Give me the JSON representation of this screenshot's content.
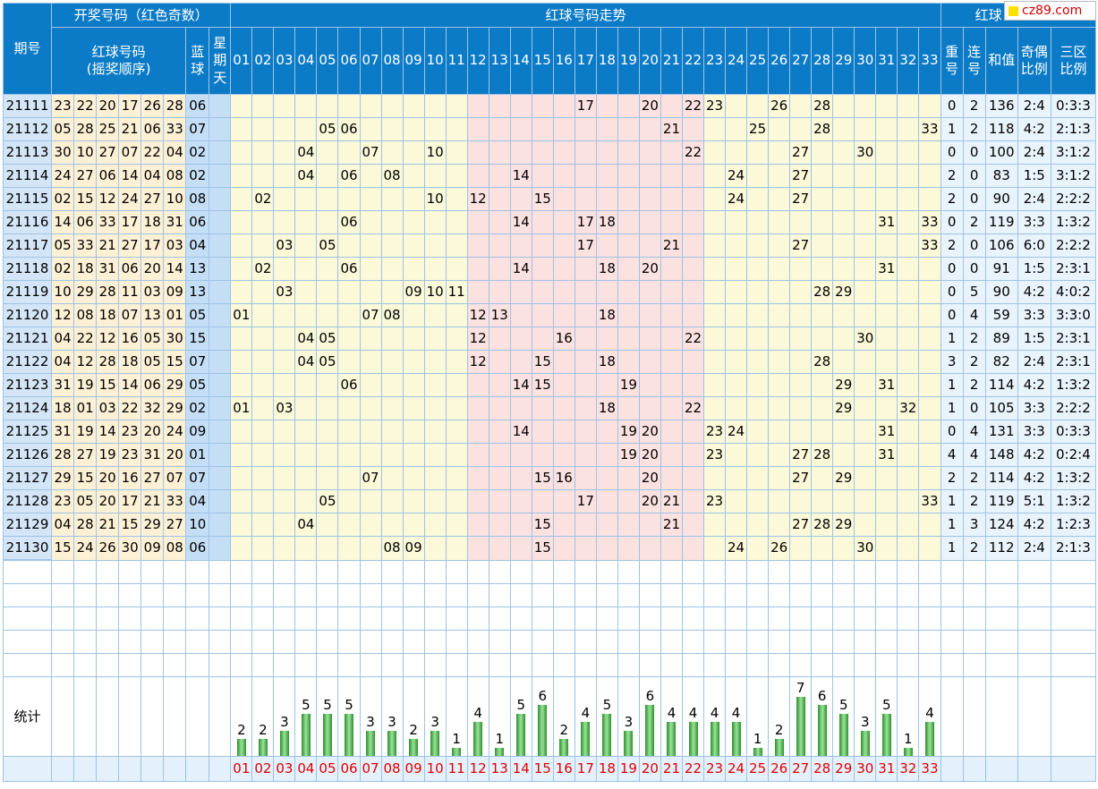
{
  "header": {
    "period": "期号",
    "draw_group": "开奖号码（红色奇数）",
    "trend_group": "红球号码走势",
    "stats_group": "红球",
    "red_label": "红球号码\n(摇奖顺序)",
    "blue_label": "蓝\n球",
    "weekday_label": "星\n期\n天",
    "repeat_label": "重\n号",
    "consec_label": "连\n号",
    "sum_label": "和值",
    "oddeven_label": "奇偶\n比例",
    "zone_label": "三区\n比例"
  },
  "numbers": [
    "01",
    "02",
    "03",
    "04",
    "05",
    "06",
    "07",
    "08",
    "09",
    "10",
    "11",
    "12",
    "13",
    "14",
    "15",
    "16",
    "17",
    "18",
    "19",
    "20",
    "21",
    "22",
    "23",
    "24",
    "25",
    "26",
    "27",
    "28",
    "29",
    "30",
    "31",
    "32",
    "33"
  ],
  "rows": [
    {
      "p": "21111",
      "red": [
        "23",
        "22",
        "20",
        "17",
        "26",
        "28"
      ],
      "blue": "06",
      "rep": "0",
      "con": "2",
      "sum": "136",
      "oe": "2:4",
      "zone": "0:3:3"
    },
    {
      "p": "21112",
      "red": [
        "05",
        "28",
        "25",
        "21",
        "06",
        "33"
      ],
      "blue": "07",
      "rep": "1",
      "con": "2",
      "sum": "118",
      "oe": "4:2",
      "zone": "2:1:3"
    },
    {
      "p": "21113",
      "red": [
        "30",
        "10",
        "27",
        "07",
        "22",
        "04"
      ],
      "blue": "02",
      "rep": "0",
      "con": "0",
      "sum": "100",
      "oe": "2:4",
      "zone": "3:1:2"
    },
    {
      "p": "21114",
      "red": [
        "24",
        "27",
        "06",
        "14",
        "04",
        "08"
      ],
      "blue": "02",
      "rep": "2",
      "con": "0",
      "sum": "83",
      "oe": "1:5",
      "zone": "3:1:2"
    },
    {
      "p": "21115",
      "red": [
        "02",
        "15",
        "12",
        "24",
        "27",
        "10"
      ],
      "blue": "08",
      "rep": "2",
      "con": "0",
      "sum": "90",
      "oe": "2:4",
      "zone": "2:2:2"
    },
    {
      "p": "21116",
      "red": [
        "14",
        "06",
        "33",
        "17",
        "18",
        "31"
      ],
      "blue": "06",
      "rep": "0",
      "con": "2",
      "sum": "119",
      "oe": "3:3",
      "zone": "1:3:2"
    },
    {
      "p": "21117",
      "red": [
        "05",
        "33",
        "21",
        "27",
        "17",
        "03"
      ],
      "blue": "04",
      "rep": "2",
      "con": "0",
      "sum": "106",
      "oe": "6:0",
      "zone": "2:2:2"
    },
    {
      "p": "21118",
      "red": [
        "02",
        "18",
        "31",
        "06",
        "20",
        "14"
      ],
      "blue": "13",
      "rep": "0",
      "con": "0",
      "sum": "91",
      "oe": "1:5",
      "zone": "2:3:1"
    },
    {
      "p": "21119",
      "red": [
        "10",
        "29",
        "28",
        "11",
        "03",
        "09"
      ],
      "blue": "13",
      "rep": "0",
      "con": "5",
      "sum": "90",
      "oe": "4:2",
      "zone": "4:0:2"
    },
    {
      "p": "21120",
      "red": [
        "12",
        "08",
        "18",
        "07",
        "13",
        "01"
      ],
      "blue": "05",
      "rep": "0",
      "con": "4",
      "sum": "59",
      "oe": "3:3",
      "zone": "3:3:0"
    },
    {
      "p": "21121",
      "red": [
        "04",
        "22",
        "12",
        "16",
        "05",
        "30"
      ],
      "blue": "15",
      "rep": "1",
      "con": "2",
      "sum": "89",
      "oe": "1:5",
      "zone": "2:3:1"
    },
    {
      "p": "21122",
      "red": [
        "04",
        "12",
        "28",
        "18",
        "05",
        "15"
      ],
      "blue": "07",
      "rep": "3",
      "con": "2",
      "sum": "82",
      "oe": "2:4",
      "zone": "2:3:1"
    },
    {
      "p": "21123",
      "red": [
        "31",
        "19",
        "15",
        "14",
        "06",
        "29"
      ],
      "blue": "05",
      "rep": "1",
      "con": "2",
      "sum": "114",
      "oe": "4:2",
      "zone": "1:3:2"
    },
    {
      "p": "21124",
      "red": [
        "18",
        "01",
        "03",
        "22",
        "32",
        "29"
      ],
      "blue": "02",
      "rep": "1",
      "con": "0",
      "sum": "105",
      "oe": "3:3",
      "zone": "2:2:2"
    },
    {
      "p": "21125",
      "red": [
        "31",
        "19",
        "14",
        "23",
        "20",
        "24"
      ],
      "blue": "09",
      "rep": "0",
      "con": "4",
      "sum": "131",
      "oe": "3:3",
      "zone": "0:3:3"
    },
    {
      "p": "21126",
      "red": [
        "28",
        "27",
        "19",
        "23",
        "31",
        "20"
      ],
      "blue": "01",
      "rep": "4",
      "con": "4",
      "sum": "148",
      "oe": "4:2",
      "zone": "0:2:4"
    },
    {
      "p": "21127",
      "red": [
        "29",
        "15",
        "20",
        "16",
        "27",
        "07"
      ],
      "blue": "07",
      "rep": "2",
      "con": "2",
      "sum": "114",
      "oe": "4:2",
      "zone": "1:3:2"
    },
    {
      "p": "21128",
      "red": [
        "23",
        "05",
        "20",
        "17",
        "21",
        "33"
      ],
      "blue": "04",
      "rep": "1",
      "con": "2",
      "sum": "119",
      "oe": "5:1",
      "zone": "1:3:2"
    },
    {
      "p": "21129",
      "red": [
        "04",
        "28",
        "21",
        "15",
        "29",
        "27"
      ],
      "blue": "10",
      "rep": "1",
      "con": "3",
      "sum": "124",
      "oe": "4:2",
      "zone": "1:2:3"
    },
    {
      "p": "21130",
      "red": [
        "15",
        "24",
        "26",
        "30",
        "09",
        "08"
      ],
      "blue": "06",
      "rep": "1",
      "con": "2",
      "sum": "112",
      "oe": "2:4",
      "zone": "2:1:3"
    }
  ],
  "stats_label": "统计",
  "counts": [
    2,
    2,
    3,
    5,
    5,
    5,
    3,
    3,
    2,
    3,
    1,
    4,
    1,
    5,
    6,
    2,
    4,
    5,
    3,
    6,
    4,
    4,
    4,
    4,
    1,
    2,
    7,
    6,
    5,
    3,
    5,
    1,
    4
  ],
  "watermark": "cz89.com",
  "colors": {
    "header": "#0c7bc7",
    "odd": "#e00000",
    "bar": "#2d8f2d"
  }
}
